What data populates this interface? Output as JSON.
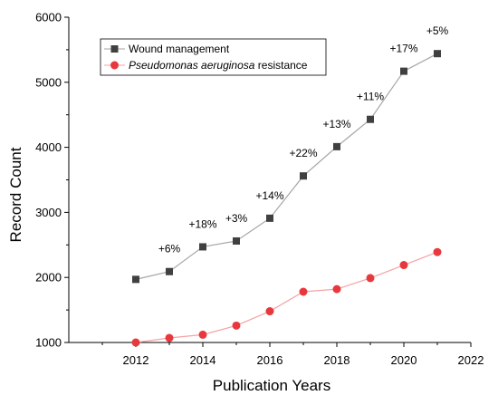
{
  "chart_data": {
    "type": "line",
    "title": "",
    "xlabel": "Publication Years",
    "ylabel": "Record Count",
    "xlim": [
      2010,
      2022
    ],
    "ylim": [
      1000,
      6000
    ],
    "x_ticks": [
      2012,
      2014,
      2016,
      2018,
      2020,
      2022
    ],
    "y_ticks": [
      1000,
      2000,
      3000,
      4000,
      5000,
      6000
    ],
    "legend_position": "top-left",
    "series": [
      {
        "name": "Wound management",
        "marker": "square",
        "marker_color": "#404040",
        "line_color": "#a6a6a6",
        "x": [
          2012,
          2013,
          2014,
          2015,
          2016,
          2017,
          2018,
          2019,
          2020,
          2021
        ],
        "values": [
          1970,
          2090,
          2470,
          2560,
          2910,
          3560,
          4010,
          4430,
          5170,
          5440
        ]
      },
      {
        "name_italic": "Pseudomonas aeruginosa",
        "name_plain": " resistance",
        "marker": "circle",
        "marker_color": "#e8383d",
        "line_color": "#f3a3a5",
        "x": [
          2012,
          2013,
          2014,
          2015,
          2016,
          2017,
          2018,
          2019,
          2020,
          2021
        ],
        "values": [
          1000,
          1070,
          1120,
          1260,
          1480,
          1780,
          1820,
          1990,
          2190,
          2390
        ]
      }
    ],
    "annotations": [
      {
        "x": 2013,
        "text": "+6%"
      },
      {
        "x": 2014,
        "text": "+18%"
      },
      {
        "x": 2015,
        "text": "+3%"
      },
      {
        "x": 2016,
        "text": "+14%"
      },
      {
        "x": 2017,
        "text": "+22%"
      },
      {
        "x": 2018,
        "text": "+13%"
      },
      {
        "x": 2019,
        "text": "+11%"
      },
      {
        "x": 2020,
        "text": "+17%"
      },
      {
        "x": 2021,
        "text": "+5%"
      }
    ]
  }
}
